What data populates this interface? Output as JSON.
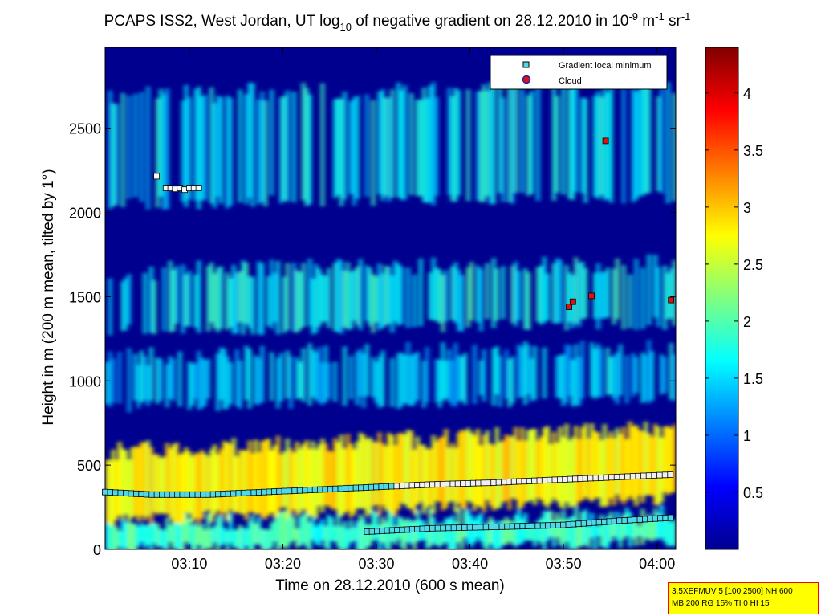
{
  "chart_data": {
    "type": "heatmap",
    "title_parts": {
      "t1": "PCAPS ISS2, West Jordan, UT log",
      "t2": "10",
      "t3": " of negative gradient on 28.12.2010 in 10",
      "t4": "-9",
      "t5": " m",
      "t6": "-1",
      "t7": " sr",
      "t8": "-1"
    },
    "xlabel": "Time on 28.12.2010 (600 s mean)",
    "ylabel": "Height in m (200 m mean, tilted by 1°)",
    "xlim_minutes": [
      181,
      242
    ],
    "ylim": [
      0,
      2980
    ],
    "xticks": [
      {
        "minute": 190,
        "label": "03:10"
      },
      {
        "minute": 200,
        "label": "03:20"
      },
      {
        "minute": 210,
        "label": "03:30"
      },
      {
        "minute": 220,
        "label": "03:40"
      },
      {
        "minute": 230,
        "label": "03:50"
      },
      {
        "minute": 240,
        "label": "04:00"
      }
    ],
    "yticks": [
      0,
      500,
      1000,
      1500,
      2000,
      2500
    ],
    "colorbar": {
      "clim": [
        0,
        4.4
      ],
      "ticks": [
        "0.5",
        "1",
        "1.5",
        "2",
        "2.5",
        "3",
        "3.5",
        "4"
      ],
      "colormap": "jet"
    },
    "legend": {
      "position": "top-right",
      "entries": [
        {
          "label": "Gradient local minimum",
          "marker": "square",
          "color": "#4fd8e8"
        },
        {
          "label": "Cloud",
          "marker": "circle",
          "color": "#e01010"
        }
      ]
    },
    "layers": [
      {
        "name": "ground band",
        "h0": 0,
        "h1": 160,
        "value": 1.9
      },
      {
        "name": "surface yellow band",
        "h0": 170,
        "h1": 580,
        "value": 2.8
      },
      {
        "name": "upper cloud layer",
        "h0": 2050,
        "h1": 2700,
        "value": 1.6
      },
      {
        "name": "mid layer",
        "h0": 1300,
        "h1": 1650,
        "value": 1.7
      },
      {
        "name": "lower layer",
        "h0": 850,
        "h1": 1150,
        "value": 1.5
      }
    ],
    "gradient_minimum_lines": [
      {
        "name": "lower",
        "points": [
          [
            209,
            105
          ],
          [
            216,
            125
          ],
          [
            224,
            135
          ],
          [
            230,
            145
          ],
          [
            236,
            170
          ],
          [
            242,
            190
          ]
        ]
      },
      {
        "name": "upper",
        "points": [
          [
            181,
            340
          ],
          [
            186,
            325
          ],
          [
            192,
            325
          ],
          [
            198,
            340
          ],
          [
            204,
            355
          ],
          [
            210,
            370
          ],
          [
            216,
            385
          ],
          [
            222,
            395
          ],
          [
            228,
            410
          ],
          [
            234,
            425
          ],
          [
            242,
            445
          ]
        ]
      }
    ],
    "gradient_minimum_upper_points": [
      [
        186.5,
        2215
      ],
      [
        187.5,
        2145
      ],
      [
        188,
        2145
      ],
      [
        188.5,
        2140
      ],
      [
        189,
        2145
      ],
      [
        189.5,
        2135
      ],
      [
        190,
        2145
      ],
      [
        190.5,
        2145
      ],
      [
        191,
        2145
      ]
    ],
    "cloud_points": [
      [
        230.6,
        1440
      ],
      [
        231,
        1470
      ],
      [
        233,
        1505
      ],
      [
        234.5,
        2425
      ],
      [
        241.5,
        1480
      ]
    ]
  },
  "infobox": {
    "line1": "3.5XEFMUV 5 [100 2500] NH 600",
    "line2": "MB 200 RG 15% TI 0 HI 15"
  }
}
